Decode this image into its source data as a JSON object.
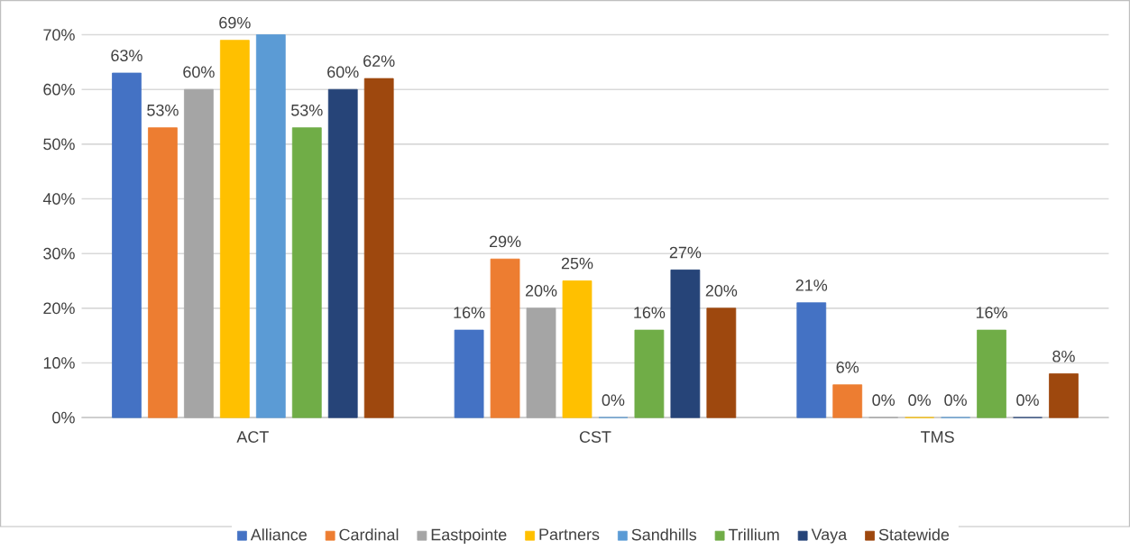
{
  "chart_data": {
    "type": "bar",
    "categories": [
      "ACT",
      "CST",
      "TMS"
    ],
    "series": [
      {
        "name": "Alliance",
        "color": "#4472c4",
        "values": [
          63,
          16,
          21
        ],
        "value_labels": [
          "63%",
          "16%",
          "21%"
        ]
      },
      {
        "name": "Cardinal",
        "color": "#ed7d31",
        "values": [
          53,
          29,
          6
        ],
        "value_labels": [
          "53%",
          "29%",
          "6%"
        ]
      },
      {
        "name": "Eastpointe",
        "color": "#a5a5a5",
        "values": [
          60,
          20,
          0
        ],
        "value_labels": [
          "60%",
          "20%",
          "0%"
        ]
      },
      {
        "name": "Partners",
        "color": "#ffc000",
        "values": [
          69,
          25,
          0
        ],
        "value_labels": [
          "69%",
          "25%",
          "0%"
        ]
      },
      {
        "name": "Sandhills",
        "color": "#5b9bd5",
        "values": [
          70,
          0,
          0
        ],
        "value_labels": [
          null,
          "0%",
          "0%"
        ]
      },
      {
        "name": "Trillium",
        "color": "#70ad47",
        "values": [
          53,
          16,
          16
        ],
        "value_labels": [
          "53%",
          "16%",
          "16%"
        ]
      },
      {
        "name": "Vaya",
        "color": "#264478",
        "values": [
          60,
          27,
          0
        ],
        "value_labels": [
          "60%",
          "27%",
          "0%"
        ]
      },
      {
        "name": "Statewide",
        "color": "#9e480e",
        "values": [
          62,
          20,
          8
        ],
        "value_labels": [
          "62%",
          "20%",
          "8%"
        ]
      }
    ],
    "ylim": [
      0,
      70
    ],
    "yticks": [
      {
        "value": 0,
        "label": "0%"
      },
      {
        "value": 10,
        "label": "10%"
      },
      {
        "value": 20,
        "label": "20%"
      },
      {
        "value": 30,
        "label": "30%"
      },
      {
        "value": 40,
        "label": "40%"
      },
      {
        "value": 50,
        "label": "50%"
      },
      {
        "value": 60,
        "label": "60%"
      },
      {
        "value": 70,
        "label": "70%"
      }
    ],
    "grid": "y",
    "legend": "bottom"
  }
}
